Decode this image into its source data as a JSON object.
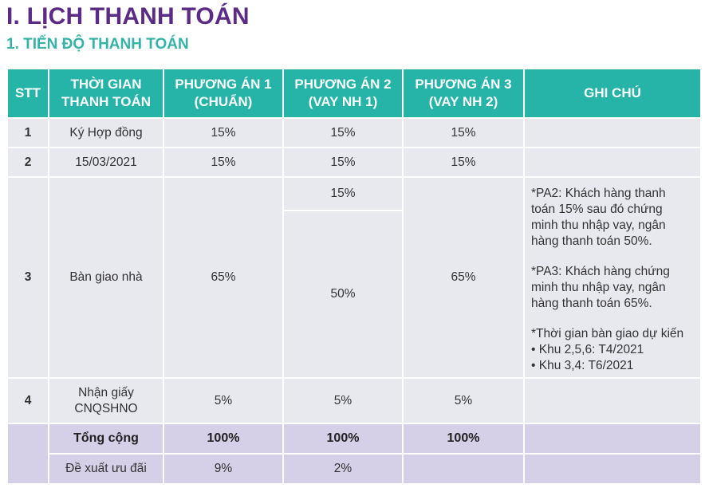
{
  "title": "I. LỊCH THANH TOÁN",
  "subtitle": "1. TIẾN ĐỘ THANH TOÁN",
  "headers": {
    "stt": "STT",
    "time_l1": "THỜI GIAN",
    "time_l2": "THANH TOÁN",
    "pa1_l1": "PHƯƠNG ÁN 1",
    "pa1_l2": "(CHUẨN)",
    "pa2_l1": "PHƯƠNG ÁN 2",
    "pa2_l2": "(VAY NH 1)",
    "pa3_l1": "PHƯƠNG ÁN 3",
    "pa3_l2": "(VAY NH 2)",
    "note": "GHI CHÚ"
  },
  "rows": [
    {
      "stt": "1",
      "time": "Ký Hợp đồng",
      "pa1": "15%",
      "pa2": "15%",
      "pa3": "15%"
    },
    {
      "stt": "2",
      "time": "15/03/2021",
      "pa1": "15%",
      "pa2": "15%",
      "pa3": "15%"
    },
    {
      "stt": "3",
      "time": "Bàn giao nhà",
      "pa1": "65%",
      "pa2_a": "15%",
      "pa2_b": "50%",
      "pa3": "65%"
    },
    {
      "stt": "4",
      "time_l1": "Nhận giấy",
      "time_l2": "CNQSHNO",
      "pa1": "5%",
      "pa2": "5%",
      "pa3": "5%"
    }
  ],
  "note_lines": [
    "*PA2: Khách hàng thanh",
    "toán 15% sau đó chứng",
    "minh thu nhập vay, ngân",
    "hàng thanh toán 50%.",
    "*PA3: Khách hàng chứng",
    "minh thu nhập vay, ngân",
    "hàng thanh toán 65%.",
    "*Thời gian bàn giao dự kiến",
    "• Khu 2,5,6: T4/2021",
    "• Khu 3,4: T6/2021"
  ],
  "total": {
    "label": "Tổng cộng",
    "pa1": "100%",
    "pa2": "100%",
    "pa3": "100%"
  },
  "offer": {
    "label": "Đề xuất ưu đãi",
    "pa1": "9%",
    "pa2": "2%",
    "pa3": ""
  },
  "colors": {
    "title": "#5b2b86",
    "subtitle": "#34b3a6",
    "header_bg": "#26b3a8",
    "cell_bg": "#e8e8ef",
    "total_bg": "#d5cfe7"
  }
}
